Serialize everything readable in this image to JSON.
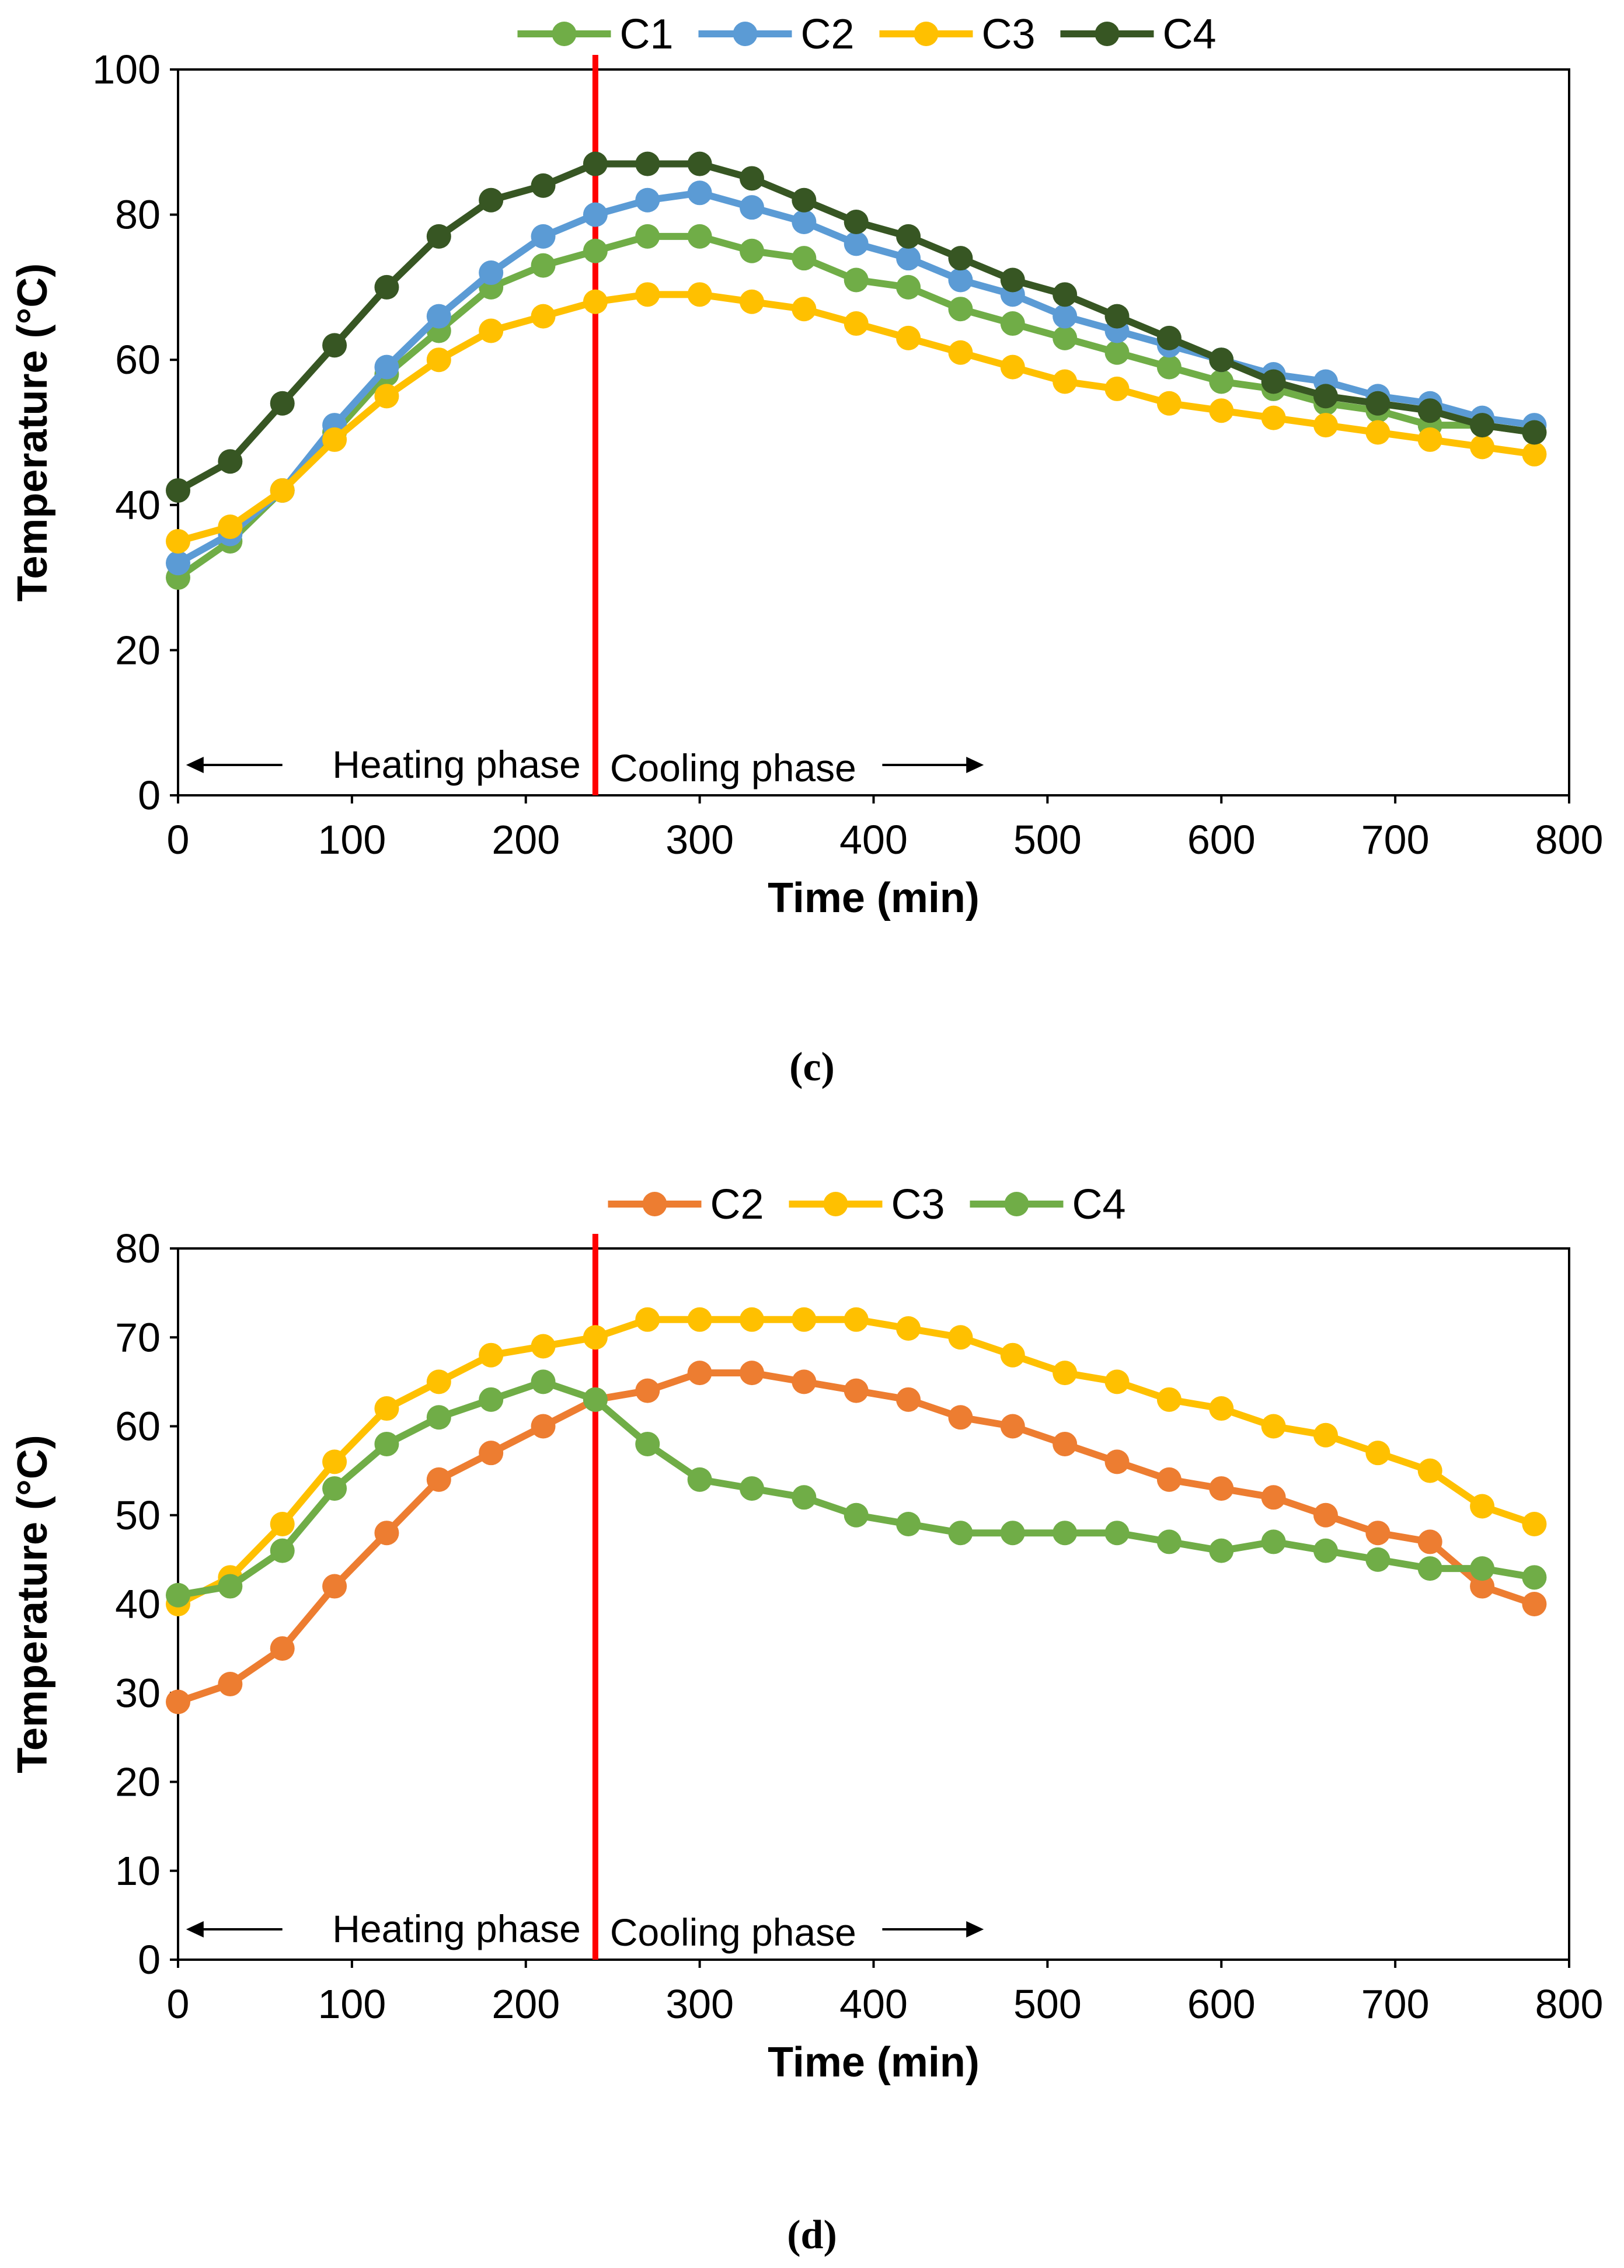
{
  "chart_data": [
    {
      "type": "line",
      "panel_label": "(c)",
      "xlabel": "Time (min)",
      "ylabel": "Temperature (°C)",
      "xlim": [
        0,
        800
      ],
      "ylim": [
        0,
        100
      ],
      "xticks": [
        0,
        100,
        200,
        300,
        400,
        500,
        600,
        700,
        800
      ],
      "yticks": [
        0,
        20,
        40,
        60,
        80,
        100
      ],
      "legend_placement": "top-center",
      "grid": false,
      "x": [
        0,
        30,
        60,
        90,
        120,
        150,
        180,
        210,
        240,
        270,
        300,
        330,
        360,
        390,
        420,
        450,
        480,
        510,
        540,
        570,
        600,
        630,
        660,
        690,
        720,
        750,
        780
      ],
      "series": [
        {
          "name": "C1",
          "color": "#70AD47",
          "values": [
            30,
            35,
            42,
            50,
            58,
            64,
            70,
            73,
            75,
            77,
            77,
            75,
            74,
            71,
            70,
            67,
            65,
            63,
            61,
            59,
            57,
            56,
            54,
            53,
            51,
            51,
            50
          ]
        },
        {
          "name": "C2",
          "color": "#5B9BD5",
          "values": [
            32,
            36,
            42,
            51,
            59,
            66,
            72,
            77,
            80,
            82,
            83,
            81,
            79,
            76,
            74,
            71,
            69,
            66,
            64,
            62,
            60,
            58,
            57,
            55,
            54,
            52,
            51
          ]
        },
        {
          "name": "C3",
          "color": "#FFC000",
          "values": [
            35,
            37,
            42,
            49,
            55,
            60,
            64,
            66,
            68,
            69,
            69,
            68,
            67,
            65,
            63,
            61,
            59,
            57,
            56,
            54,
            53,
            52,
            51,
            50,
            49,
            48,
            47
          ]
        },
        {
          "name": "C4",
          "color": "#375623",
          "values": [
            42,
            46,
            54,
            62,
            70,
            77,
            82,
            84,
            87,
            87,
            87,
            85,
            82,
            79,
            77,
            74,
            71,
            69,
            66,
            63,
            60,
            57,
            55,
            54,
            53,
            51,
            50
          ]
        }
      ],
      "divider_x": 240,
      "divider_color": "#FF0000",
      "annotations": {
        "heating": "Heating phase",
        "cooling": "Cooling phase"
      }
    },
    {
      "type": "line",
      "panel_label": "(d)",
      "xlabel": "Time (min)",
      "ylabel": "Temperature (°C)",
      "xlim": [
        0,
        800
      ],
      "ylim": [
        0,
        80
      ],
      "xticks": [
        0,
        100,
        200,
        300,
        400,
        500,
        600,
        700,
        800
      ],
      "yticks": [
        0,
        10,
        20,
        30,
        40,
        50,
        60,
        70,
        80
      ],
      "legend_placement": "top-center",
      "grid": false,
      "x": [
        0,
        30,
        60,
        90,
        120,
        150,
        180,
        210,
        240,
        270,
        300,
        330,
        360,
        390,
        420,
        450,
        480,
        510,
        540,
        570,
        600,
        630,
        660,
        690,
        720,
        750,
        780
      ],
      "series": [
        {
          "name": "C2",
          "color": "#ED7D31",
          "values": [
            29,
            31,
            35,
            42,
            48,
            54,
            57,
            60,
            63,
            64,
            66,
            66,
            65,
            64,
            63,
            61,
            60,
            58,
            56,
            54,
            53,
            52,
            50,
            48,
            47,
            42,
            40
          ]
        },
        {
          "name": "C3",
          "color": "#FFC000",
          "values": [
            40,
            43,
            49,
            56,
            62,
            65,
            68,
            69,
            70,
            72,
            72,
            72,
            72,
            72,
            71,
            70,
            68,
            66,
            65,
            63,
            62,
            60,
            59,
            57,
            55,
            51,
            49
          ]
        },
        {
          "name": "C4",
          "color": "#70AD47",
          "values": [
            41,
            42,
            46,
            53,
            58,
            61,
            63,
            65,
            63,
            58,
            54,
            53,
            52,
            50,
            49,
            48,
            48,
            48,
            48,
            47,
            46,
            47,
            46,
            45,
            44,
            44,
            43
          ]
        }
      ],
      "divider_x": 240,
      "divider_color": "#FF0000",
      "annotations": {
        "heating": "Heating phase",
        "cooling": "Cooling phase"
      }
    }
  ]
}
